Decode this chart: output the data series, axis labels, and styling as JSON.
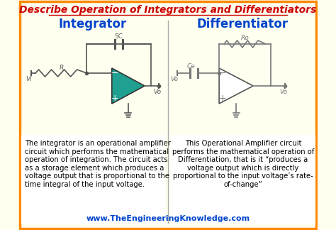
{
  "title": "Describe Operation of Integrators and Differentiators",
  "title_color": "#cc0000",
  "title_fontsize": 10.0,
  "background_color": "#fffff0",
  "border_color": "#ff8800",
  "integrator_title": "Integrator",
  "differentiator_title": "Differentiator",
  "header_title_color": "#0044cc",
  "left_text": "The integrator is an operational amplifier\ncircuit which performs the mathematical\noperation of integration. The circuit acts\nas a storage element which produces a\nvoltage output that is proportional to the\ntime integral of the input voltage.",
  "right_text": "This Operational Amplifier circuit\nperforms the mathematical operation of\nDifferentiation, that is it “produces a\nvoltage output which is directly\nproportional to the input voltage’s rate-\nof-change”",
  "footer_text": "www.TheEngineeringKnowledge.com",
  "footer_color": "#0044cc",
  "circuit_color": "#555555",
  "circuit_color2": "#777777",
  "teal_color": "#20a090",
  "text_fontsize": 7.2,
  "label_fontsize": 6.5
}
